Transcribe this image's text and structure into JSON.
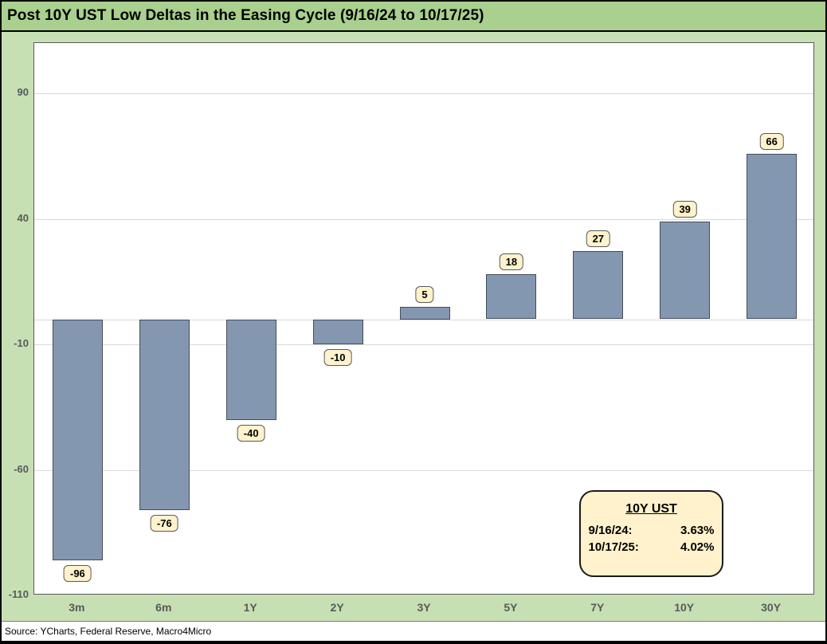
{
  "chart_data": {
    "type": "bar",
    "title": "Post 10Y UST Low Deltas in the Easing Cycle (9/16/24 to 10/17/25)",
    "categories": [
      "3m",
      "6m",
      "1Y",
      "2Y",
      "3Y",
      "5Y",
      "7Y",
      "10Y",
      "30Y"
    ],
    "values": [
      -96,
      -76,
      -40,
      -10,
      5,
      18,
      27,
      39,
      66
    ],
    "data_labels": [
      "-96",
      "-76",
      "-40",
      "-10",
      "5",
      "18",
      "27",
      "39",
      "66"
    ],
    "xlabel": "",
    "ylabel": "",
    "ylim": [
      -110,
      110
    ],
    "yticks": [
      90,
      40,
      -10,
      -60,
      -110
    ],
    "gridline_values": [
      90,
      40,
      -10,
      0,
      -60
    ],
    "grid": true,
    "legend_position": "bottom-right-inside",
    "legend_box": {
      "title": "10Y UST",
      "lines": [
        {
          "label": "9/16/24:",
          "value": "3.63%"
        },
        {
          "label": "10/17/25:",
          "value": "4.02%"
        }
      ]
    },
    "colors": {
      "title_bg": "#A9D08E",
      "chart_bg": "#C6E0B4",
      "plot_bg": "#FFFFFF",
      "plot_border": "#595959",
      "grid": "#D9D9D9",
      "bar_fill": "#8497B0",
      "bar_border": "#454C59",
      "label_bg": "#FFF2CC",
      "label_border": "#595959",
      "axis_text": "#595959"
    }
  },
  "source_bar": {
    "text": "Source: YCharts, Federal Reserve, Macro4Micro"
  }
}
